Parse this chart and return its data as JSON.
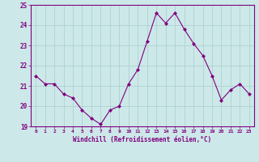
{
  "x": [
    0,
    1,
    2,
    3,
    4,
    5,
    6,
    7,
    8,
    9,
    10,
    11,
    12,
    13,
    14,
    15,
    16,
    17,
    18,
    19,
    20,
    21,
    22,
    23
  ],
  "y": [
    21.5,
    21.1,
    21.1,
    20.6,
    20.4,
    19.8,
    19.4,
    19.1,
    19.8,
    20.0,
    21.1,
    21.8,
    23.2,
    24.6,
    24.1,
    24.6,
    23.8,
    23.1,
    22.5,
    21.5,
    20.3,
    20.8,
    21.1,
    20.6
  ],
  "line_color": "#800080",
  "marker": "D",
  "marker_size": 2,
  "bg_color": "#cce8e8",
  "grid_color": "#aacece",
  "xlabel": "Windchill (Refroidissement éolien,°C)",
  "ylim": [
    19,
    25
  ],
  "xlim": [
    -0.5,
    23.5
  ],
  "yticks": [
    19,
    20,
    21,
    22,
    23,
    24,
    25
  ],
  "xticks": [
    0,
    1,
    2,
    3,
    4,
    5,
    6,
    7,
    8,
    9,
    10,
    11,
    12,
    13,
    14,
    15,
    16,
    17,
    18,
    19,
    20,
    21,
    22,
    23
  ],
  "tick_color": "#800080",
  "label_color": "#800080",
  "spine_color": "#800080"
}
